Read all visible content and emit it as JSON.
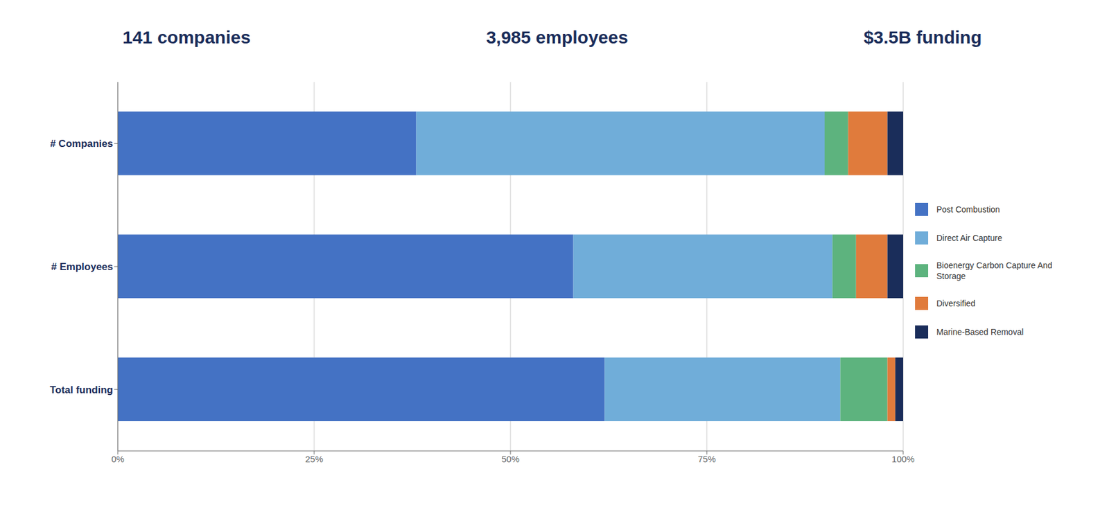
{
  "chart_data": {
    "type": "bar",
    "orientation": "horizontal",
    "stacked": true,
    "annotations": [
      "141 companies",
      "3,985 employees",
      "$3.5B funding"
    ],
    "categories": [
      "Total funding",
      "# Employees",
      "# Companies"
    ],
    "series": [
      {
        "name": "Post Combustion",
        "color": "#4472C4",
        "values": [
          0.62,
          0.58,
          0.38
        ]
      },
      {
        "name": "Direct Air Capture",
        "color": "#70ADD9",
        "values": [
          0.3,
          0.33,
          0.52
        ]
      },
      {
        "name": "Bioenergy Carbon Capture And\nStorage",
        "color": "#5DB37E",
        "values": [
          0.06,
          0.03,
          0.03
        ]
      },
      {
        "name": "Diversified",
        "color": "#E07B3C",
        "values": [
          0.01,
          0.04,
          0.05
        ]
      },
      {
        "name": "Marine-Based Removal",
        "color": "#1A2D5A",
        "values": [
          0.01,
          0.02,
          0.02
        ]
      }
    ],
    "xlim": [
      0,
      1.0
    ],
    "xticks": [
      {
        "value": 0.0,
        "label": "0%"
      },
      {
        "value": 0.25,
        "label": "25%"
      },
      {
        "value": 0.5,
        "label": "50%"
      },
      {
        "value": 0.75,
        "label": "75%"
      },
      {
        "value": 1.0,
        "label": "100%"
      }
    ],
    "grid": true,
    "legend": "right"
  }
}
